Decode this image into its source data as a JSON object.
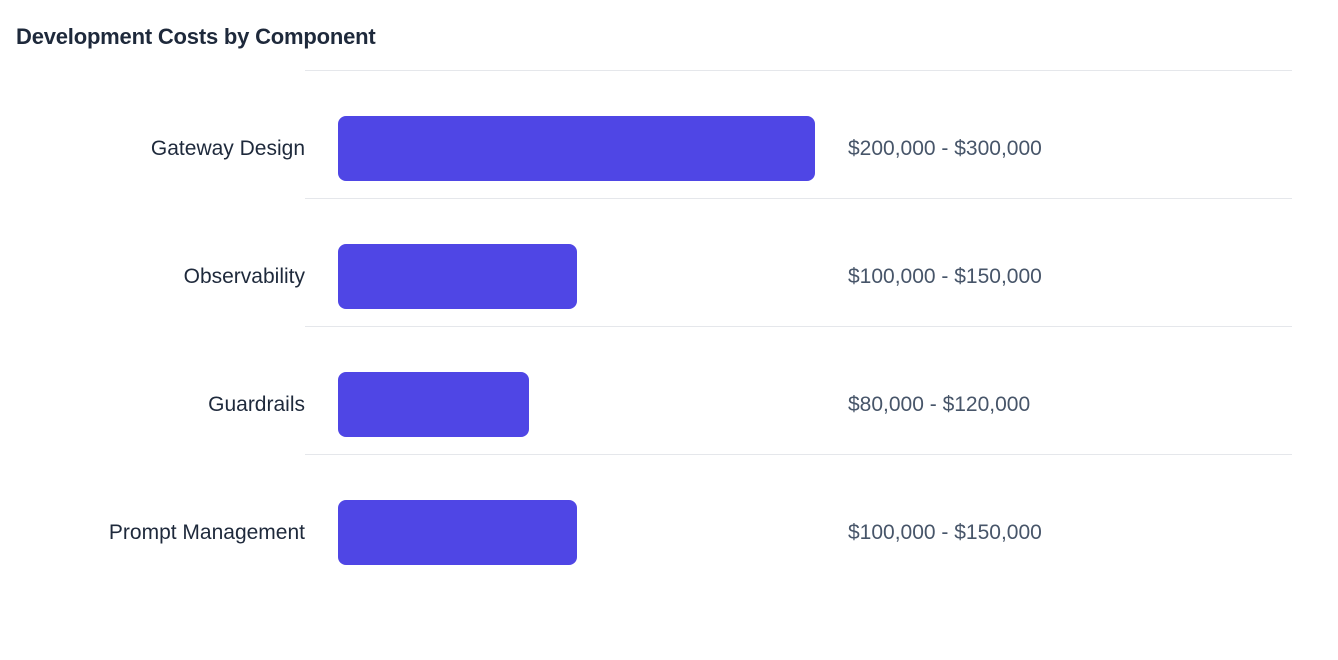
{
  "header": {
    "title": "Development Costs by Component"
  },
  "chart_data": {
    "type": "bar",
    "orientation": "horizontal",
    "title": "Development Costs by Component",
    "categories": [
      "Gateway Design",
      "Observability",
      "Guardrails",
      "Prompt Management"
    ],
    "rows": [
      {
        "label": "Gateway Design",
        "min": 200000,
        "max": 300000,
        "value_label": "$200,000 - $300,000"
      },
      {
        "label": "Observability",
        "min": 100000,
        "max": 150000,
        "value_label": "$100,000 - $150,000"
      },
      {
        "label": "Guardrails",
        "min": 80000,
        "max": 120000,
        "value_label": "$80,000 - $120,000"
      },
      {
        "label": "Prompt Management",
        "min": 100000,
        "max": 150000,
        "value_label": "$100,000 - $150,000"
      }
    ],
    "xlim": [
      0,
      300000
    ],
    "legend_visible": false,
    "grid": "row-dividers",
    "colors": {
      "bar": "#4f46e5",
      "title_text": "#1e293b",
      "label_text": "#1e293b",
      "value_text": "#475569",
      "divider": "#e5e7eb",
      "background": "#ffffff"
    }
  }
}
